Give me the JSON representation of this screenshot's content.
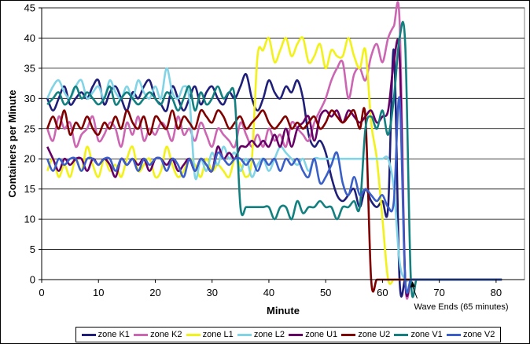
{
  "chart_data": {
    "type": "line",
    "title": "",
    "xlabel": "Minute",
    "ylabel": "Containers per Minute",
    "xlim": [
      0,
      85
    ],
    "ylim": [
      0,
      45
    ],
    "xticks": [
      0,
      10,
      20,
      30,
      40,
      50,
      60,
      70,
      80
    ],
    "yticks": [
      0,
      5,
      10,
      15,
      20,
      25,
      30,
      35,
      40,
      45
    ],
    "grid": "horizontal",
    "legend_position": "bottom",
    "annotation": {
      "text": "Wave Ends (65 minutes)",
      "x": 65,
      "y": 0
    },
    "x": [
      1,
      2,
      3,
      4,
      5,
      6,
      7,
      8,
      9,
      10,
      11,
      12,
      13,
      14,
      15,
      16,
      17,
      18,
      19,
      20,
      21,
      22,
      23,
      24,
      25,
      26,
      27,
      28,
      29,
      30,
      31,
      32,
      33,
      34,
      35,
      36,
      37,
      38,
      39,
      40,
      41,
      42,
      43,
      44,
      45,
      46,
      47,
      48,
      49,
      50,
      51,
      52,
      53,
      54,
      55,
      56,
      57,
      58,
      59,
      60,
      61,
      62,
      63,
      64,
      65,
      66,
      67,
      68,
      69,
      70,
      71,
      72,
      73,
      74,
      75,
      76,
      77,
      78,
      79,
      80,
      81
    ],
    "series": [
      {
        "name": "zone K1",
        "color": "#1f1f7a",
        "values": [
          30,
          28,
          30,
          32,
          29,
          30,
          31,
          30,
          32,
          33,
          29,
          31,
          32,
          30,
          28,
          31,
          30,
          32,
          33,
          30,
          29,
          28,
          32,
          30,
          28,
          30,
          32,
          29,
          31,
          32,
          30,
          29,
          31,
          30,
          32,
          34,
          30,
          28,
          30,
          33,
          31,
          30,
          32,
          31,
          33,
          30,
          24,
          22,
          23,
          21,
          17,
          14,
          13,
          14,
          15,
          12,
          15,
          13,
          12,
          13,
          12,
          38,
          0,
          0,
          0,
          0,
          0,
          0,
          0,
          0,
          0,
          0,
          0,
          0,
          0,
          0,
          0,
          0,
          0,
          0,
          0
        ]
      },
      {
        "name": "zone K2",
        "color": "#cc66b3",
        "values": [
          25,
          23,
          27,
          25,
          26,
          22,
          24,
          25,
          27,
          23,
          24,
          26,
          25,
          22,
          26,
          24,
          27,
          23,
          25,
          24,
          26,
          25,
          23,
          27,
          24,
          25,
          23,
          26,
          24,
          22,
          25,
          24,
          23,
          22,
          26,
          24,
          22,
          24,
          22,
          25,
          23,
          24,
          22,
          26,
          25,
          24,
          23,
          26,
          28,
          30,
          33,
          35,
          36,
          30,
          34,
          35,
          33,
          37,
          39,
          36,
          40,
          42,
          43,
          0,
          0,
          0,
          0,
          0,
          0,
          0,
          0,
          0,
          0,
          0,
          0,
          0,
          0,
          0,
          0,
          0,
          0
        ]
      },
      {
        "name": "zone L1",
        "color": "#f2f21a",
        "values": [
          18,
          20,
          17,
          19,
          17,
          20,
          18,
          22,
          19,
          17,
          20,
          18,
          19,
          17,
          20,
          22,
          18,
          19,
          20,
          17,
          18,
          22,
          19,
          17,
          18,
          20,
          19,
          17,
          20,
          18,
          19,
          18,
          17,
          20,
          19,
          17,
          20,
          37,
          38,
          40,
          36,
          38,
          40,
          37,
          39,
          40,
          36,
          37,
          39,
          35,
          38,
          37,
          37,
          40,
          37,
          35,
          38,
          26,
          20,
          10,
          0,
          0,
          0,
          0,
          0,
          0,
          0,
          0,
          0,
          0,
          0,
          0,
          0,
          0,
          0,
          0,
          0,
          0,
          0,
          0,
          0
        ]
      },
      {
        "name": "zone L2",
        "color": "#80d4e6",
        "values": [
          30,
          32,
          33,
          31,
          30,
          32,
          33,
          30,
          31,
          32,
          30,
          33,
          31,
          30,
          32,
          30,
          33,
          31,
          30,
          32,
          30,
          35,
          31,
          30,
          32,
          30,
          17,
          20,
          18,
          21,
          19,
          22,
          20,
          21,
          18,
          20,
          17,
          19,
          20,
          18,
          20,
          22,
          21,
          20,
          19,
          20,
          18,
          20,
          20,
          20,
          20,
          20,
          20,
          20,
          20,
          20,
          20,
          20,
          20,
          20,
          20,
          15,
          3,
          0,
          0,
          0,
          0,
          0,
          0,
          0,
          0,
          0,
          0,
          0,
          0,
          0,
          0,
          0,
          0,
          0,
          0
        ]
      },
      {
        "name": "zone U1",
        "color": "#660066",
        "values": [
          22,
          20,
          18,
          20,
          19,
          20,
          20,
          18,
          20,
          19,
          20,
          19,
          17,
          20,
          19,
          20,
          19,
          20,
          18,
          20,
          20,
          19,
          20,
          18,
          19,
          20,
          18,
          20,
          19,
          18,
          22,
          20,
          21,
          20,
          22,
          22,
          23,
          22,
          23,
          22,
          24,
          22,
          25,
          22,
          25,
          26,
          27,
          23,
          27,
          28,
          27,
          28,
          26,
          28,
          27,
          26,
          27,
          28,
          26,
          27,
          28,
          36,
          37,
          0,
          0,
          0,
          0,
          0,
          0,
          0,
          0,
          0,
          0,
          0,
          0,
          0,
          0,
          0,
          0,
          0,
          0
        ]
      },
      {
        "name": "zone U2",
        "color": "#800000",
        "values": [
          25,
          27,
          25,
          28,
          24,
          26,
          25,
          27,
          25,
          24,
          26,
          25,
          27,
          25,
          28,
          26,
          25,
          27,
          24,
          27,
          26,
          25,
          28,
          25,
          27,
          26,
          25,
          28,
          27,
          26,
          28,
          27,
          25,
          26,
          27,
          25,
          26,
          27,
          28,
          26,
          25,
          26,
          27,
          25,
          26,
          25,
          26,
          27,
          25,
          26,
          28,
          27,
          26,
          27,
          28,
          25,
          27,
          0,
          0,
          0,
          0,
          0,
          0,
          0,
          0,
          0,
          0,
          0,
          0,
          0,
          0,
          0,
          0,
          0,
          0,
          0,
          0,
          0,
          0,
          0,
          0
        ]
      },
      {
        "name": "zone V1",
        "color": "#138080",
        "values": [
          29,
          30,
          31,
          29,
          30,
          32,
          30,
          31,
          30,
          29,
          30,
          32,
          29,
          30,
          31,
          30,
          29,
          30,
          31,
          30,
          29,
          31,
          30,
          28,
          30,
          32,
          28,
          31,
          29,
          30,
          32,
          30,
          31,
          30,
          12,
          12,
          12,
          12,
          12,
          12,
          10,
          12,
          12,
          10,
          13,
          11,
          12,
          12,
          13,
          12,
          12,
          10,
          12,
          12,
          13,
          12,
          25,
          27,
          25,
          28,
          24,
          30,
          40,
          39,
          0,
          0,
          0,
          0,
          0,
          0,
          0,
          0,
          0,
          0,
          0,
          0,
          0,
          0,
          0,
          0,
          0
        ]
      },
      {
        "name": "zone V2",
        "color": "#3a5fc8",
        "values": [
          20,
          18,
          20,
          19,
          20,
          20,
          18,
          20,
          20,
          19,
          20,
          20,
          18,
          20,
          19,
          20,
          18,
          20,
          19,
          20,
          20,
          18,
          20,
          19,
          17,
          20,
          18,
          20,
          19,
          18,
          21,
          20,
          19,
          20,
          20,
          19,
          20,
          18,
          20,
          19,
          20,
          18,
          20,
          19,
          20,
          18,
          17,
          20,
          16,
          17,
          19,
          21,
          16,
          14,
          17,
          14,
          15,
          14,
          13,
          14,
          12,
          13,
          30,
          0,
          0,
          0,
          0,
          0,
          0,
          0,
          0,
          0,
          0,
          0,
          0,
          0,
          0,
          0,
          0,
          0,
          0
        ]
      }
    ]
  }
}
